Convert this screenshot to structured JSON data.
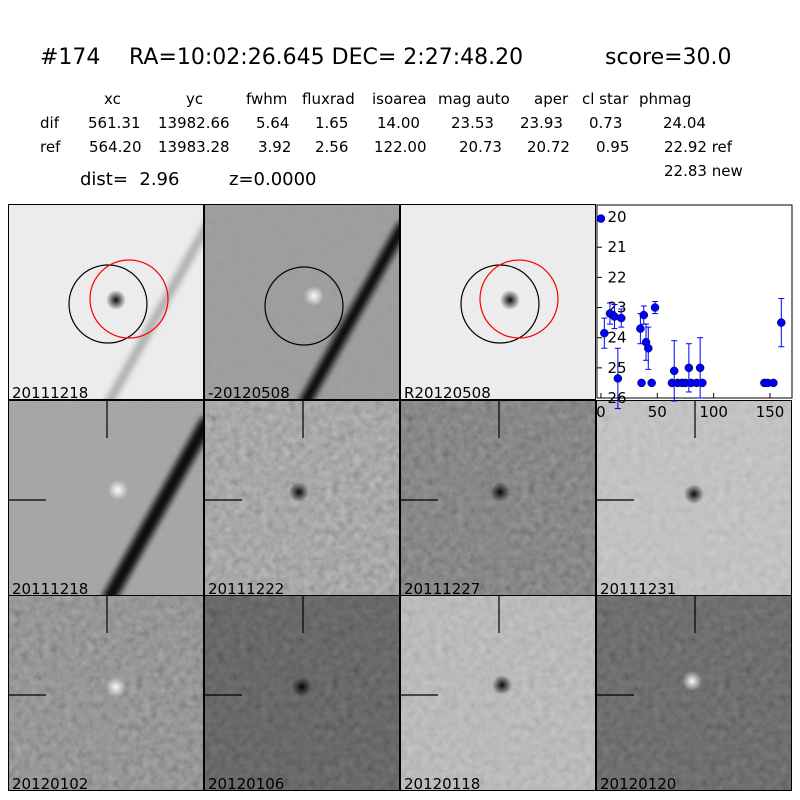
{
  "header": {
    "id": "#174",
    "coords": "RA=10:02:26.645 DEC= 2:27:48.20",
    "score": "score=30.0",
    "dist": "dist=  2.96",
    "z": "z=0.0000"
  },
  "table": {
    "columns": [
      "xc",
      "yc",
      "fwhm",
      "fluxrad",
      "isoarea",
      "mag auto",
      "aper",
      "cl star",
      "phmag"
    ],
    "rows": [
      [
        "dif",
        "561.31",
        "13982.66",
        "5.64",
        "1.65",
        "14.00",
        "23.53",
        "23.93",
        "0.73",
        "24.04"
      ],
      [
        "ref",
        "564.20",
        "13983.28",
        "3.92",
        "2.56",
        "122.00",
        "20.73",
        "20.72",
        "0.95",
        "22.92 ref"
      ]
    ],
    "extra": "22.83 new"
  },
  "panels": [
    {
      "label": "20111218"
    },
    {
      "label": "-20120508"
    },
    {
      "label": "R20120508"
    },
    {
      "label": "20111218",
      "color": "#ff0000"
    },
    {
      "label": "20111222"
    },
    {
      "label": "20111227"
    },
    {
      "label": "20111231"
    },
    {
      "label": "20120102"
    },
    {
      "label": "20120106"
    },
    {
      "label": "20120118"
    },
    {
      "label": "20120120"
    }
  ],
  "chart_data": {
    "type": "scatter",
    "x": [
      0,
      3,
      8,
      12,
      15,
      18,
      35,
      36,
      38,
      40,
      42,
      45,
      48,
      63,
      65,
      68,
      72,
      75,
      78,
      80,
      85,
      88,
      90,
      145,
      148,
      153,
      160
    ],
    "series": [
      {
        "color": "#0000ff",
        "values": [
          20.05,
          23.85,
          23.2,
          23.3,
          25.35,
          23.35,
          23.7,
          25.5,
          23.25,
          24.15,
          24.35,
          25.5,
          23.0,
          25.5,
          25.1,
          25.5,
          25.5,
          25.5,
          25.0,
          25.5,
          25.5,
          25.0,
          25.5,
          25.5,
          25.5,
          25.5,
          23.5
        ],
        "errors": [
          0,
          0.5,
          0.35,
          0.4,
          1.0,
          0.3,
          0.5,
          0,
          0.3,
          0.6,
          0.7,
          0,
          0.2,
          0,
          1.0,
          0,
          0,
          0,
          0.8,
          0,
          0,
          1.0,
          0,
          0,
          0,
          0,
          0.8
        ]
      }
    ],
    "xlim": [
      -3.5,
      169.5
    ],
    "ylim": [
      26,
      19.6
    ],
    "xticks": [
      0,
      50,
      100,
      150
    ],
    "yticks": [
      20,
      21,
      22,
      23,
      24,
      25,
      26
    ]
  }
}
